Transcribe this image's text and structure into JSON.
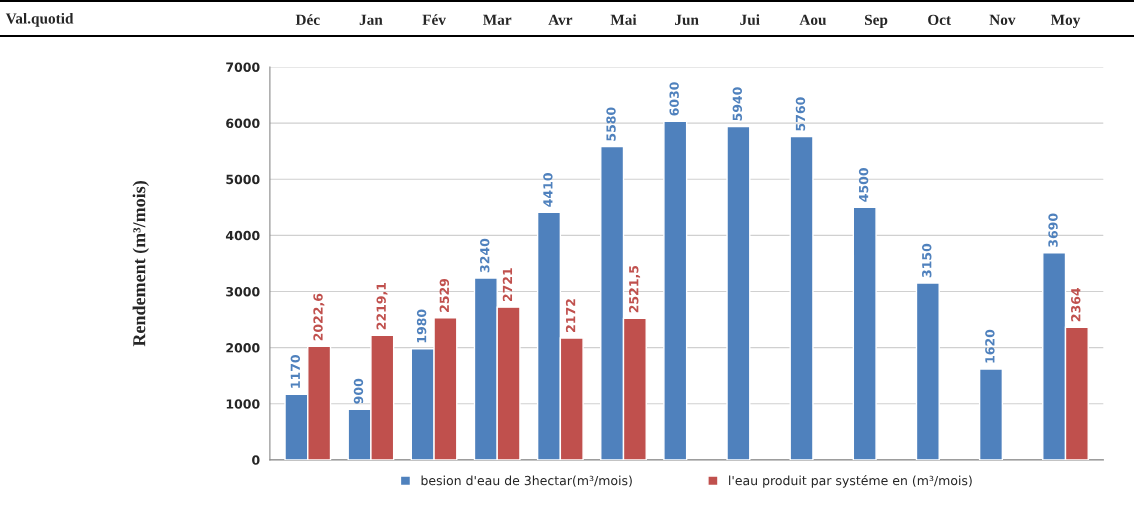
{
  "chart_data": {
    "type": "bar",
    "ylabel": "Rendement (m³/mois)",
    "categories": [
      "Déc",
      "Jan",
      "Fév",
      "Mar",
      "Avr",
      "Mai",
      "Jun",
      "Jui",
      "Aou",
      "Sep",
      "Oct",
      "Nov",
      "Moy"
    ],
    "series": [
      {
        "name": "besion d'eau de 3hectar(m³/mois)",
        "color": "#4f81bd",
        "values": [
          1170,
          900,
          1980,
          3240,
          4410,
          5580,
          6030,
          5940,
          5760,
          4500,
          3150,
          1620,
          3690
        ],
        "value_labels": [
          "1170",
          "900",
          "1980",
          "3240",
          "4410",
          "5580",
          "6030",
          "5940",
          "5760",
          "4500",
          "3150",
          "1620",
          "3690"
        ]
      },
      {
        "name": "l'eau produit par systéme en (m³/mois)",
        "color": "#c0504d",
        "values": [
          2022.6,
          2219.1,
          2529,
          2721,
          2172,
          2521.5,
          null,
          null,
          null,
          null,
          null,
          null,
          2364
        ],
        "value_labels": [
          "2022,6",
          "2219,1",
          "2529",
          "2721",
          "2172",
          "2521,5",
          null,
          null,
          null,
          null,
          null,
          null,
          "2364"
        ]
      }
    ],
    "ylim": [
      0,
      7000
    ],
    "yticks": [
      0,
      1000,
      2000,
      3000,
      4000,
      5000,
      6000,
      7000
    ],
    "grid": "y",
    "legend": "bottom",
    "annotations": [
      "Val.quotid"
    ]
  }
}
